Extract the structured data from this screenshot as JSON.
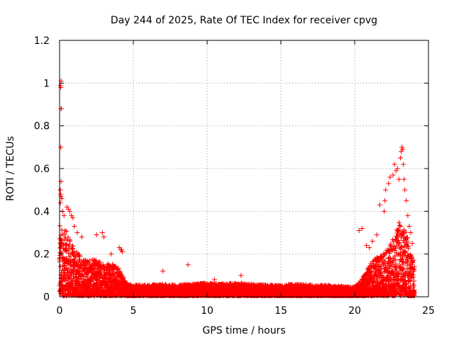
{
  "chart_data": {
    "type": "scatter",
    "title": "Day 244 of 2025, Rate Of TEC Index for receiver cpvg",
    "xlabel": "GPS time / hours",
    "ylabel": "ROTI / TECUs",
    "xlim": [
      0,
      25
    ],
    "ylim": [
      0,
      1.2
    ],
    "x_ticks": [
      0,
      5,
      10,
      15,
      20,
      25
    ],
    "x_tick_labels": [
      "0",
      "5",
      "10",
      "15",
      "20",
      "25"
    ],
    "y_ticks": [
      0,
      0.2,
      0.4,
      0.6,
      0.8,
      1.0,
      1.2
    ],
    "y_tick_labels": [
      "0",
      "0.2",
      "0.4",
      "0.6",
      "0.8",
      "1",
      "1.2"
    ],
    "grid": true,
    "marker": "+",
    "color": "#ff0000",
    "series": [
      {
        "points": [
          [
            0.05,
            0.99
          ],
          [
            0.1,
            1.01
          ],
          [
            0.08,
            0.98
          ],
          [
            0.1,
            0.88
          ],
          [
            0.12,
            0.88
          ],
          [
            0.08,
            0.7
          ],
          [
            0.1,
            0.54
          ],
          [
            0.05,
            0.5
          ],
          [
            0.07,
            0.48
          ],
          [
            0.1,
            0.47
          ],
          [
            0.05,
            0.44
          ],
          [
            0.15,
            0.46
          ],
          [
            0.2,
            0.4
          ],
          [
            0.3,
            0.38
          ],
          [
            0.5,
            0.42
          ],
          [
            0.6,
            0.41
          ],
          [
            0.7,
            0.4
          ],
          [
            0.8,
            0.38
          ],
          [
            0.9,
            0.37
          ],
          [
            1.0,
            0.33
          ],
          [
            1.2,
            0.3
          ],
          [
            1.5,
            0.28
          ],
          [
            2.5,
            0.29
          ],
          [
            2.9,
            0.3
          ],
          [
            3.0,
            0.28
          ],
          [
            4.05,
            0.23
          ],
          [
            4.15,
            0.22
          ],
          [
            4.2,
            0.22
          ],
          [
            4.25,
            0.21
          ],
          [
            3.5,
            0.2
          ],
          [
            7.0,
            0.12
          ],
          [
            8.7,
            0.15
          ],
          [
            12.3,
            0.1
          ],
          [
            10.5,
            0.08
          ],
          [
            20.3,
            0.31
          ],
          [
            20.5,
            0.32
          ],
          [
            20.8,
            0.24
          ],
          [
            21.0,
            0.23
          ],
          [
            21.2,
            0.26
          ],
          [
            21.5,
            0.29
          ],
          [
            21.7,
            0.43
          ],
          [
            22.0,
            0.4
          ],
          [
            22.05,
            0.45
          ],
          [
            22.1,
            0.5
          ],
          [
            22.3,
            0.53
          ],
          [
            22.4,
            0.56
          ],
          [
            22.6,
            0.57
          ],
          [
            22.8,
            0.59
          ],
          [
            22.7,
            0.62
          ],
          [
            22.9,
            0.6
          ],
          [
            23.0,
            0.55
          ],
          [
            23.1,
            0.65
          ],
          [
            23.15,
            0.68
          ],
          [
            23.2,
            0.7
          ],
          [
            23.25,
            0.69
          ],
          [
            23.3,
            0.62
          ],
          [
            23.35,
            0.55
          ],
          [
            23.4,
            0.5
          ],
          [
            23.5,
            0.45
          ],
          [
            23.6,
            0.38
          ],
          [
            23.7,
            0.33
          ],
          [
            23.8,
            0.3
          ],
          [
            23.9,
            0.25
          ],
          [
            24.0,
            0.17
          ]
        ],
        "dense_band": [
          [
            0.0,
            0.33
          ],
          [
            0.5,
            0.3
          ],
          [
            1.0,
            0.22
          ],
          [
            1.5,
            0.18
          ],
          [
            2.0,
            0.17
          ],
          [
            2.5,
            0.17
          ],
          [
            3.0,
            0.16
          ],
          [
            3.5,
            0.15
          ],
          [
            4.0,
            0.14
          ],
          [
            4.5,
            0.06
          ],
          [
            5.0,
            0.05
          ],
          [
            6.0,
            0.05
          ],
          [
            7.0,
            0.055
          ],
          [
            8.0,
            0.05
          ],
          [
            9.0,
            0.055
          ],
          [
            10.0,
            0.06
          ],
          [
            11.0,
            0.055
          ],
          [
            12.0,
            0.06
          ],
          [
            13.0,
            0.055
          ],
          [
            14.0,
            0.05
          ],
          [
            15.0,
            0.05
          ],
          [
            16.0,
            0.055
          ],
          [
            17.0,
            0.05
          ],
          [
            18.0,
            0.05
          ],
          [
            19.0,
            0.045
          ],
          [
            20.0,
            0.04
          ],
          [
            20.5,
            0.08
          ],
          [
            21.0,
            0.15
          ],
          [
            21.5,
            0.18
          ],
          [
            22.0,
            0.2
          ],
          [
            22.5,
            0.25
          ],
          [
            23.0,
            0.35
          ],
          [
            23.5,
            0.3
          ],
          [
            24.0,
            0.15
          ]
        ]
      }
    ]
  }
}
